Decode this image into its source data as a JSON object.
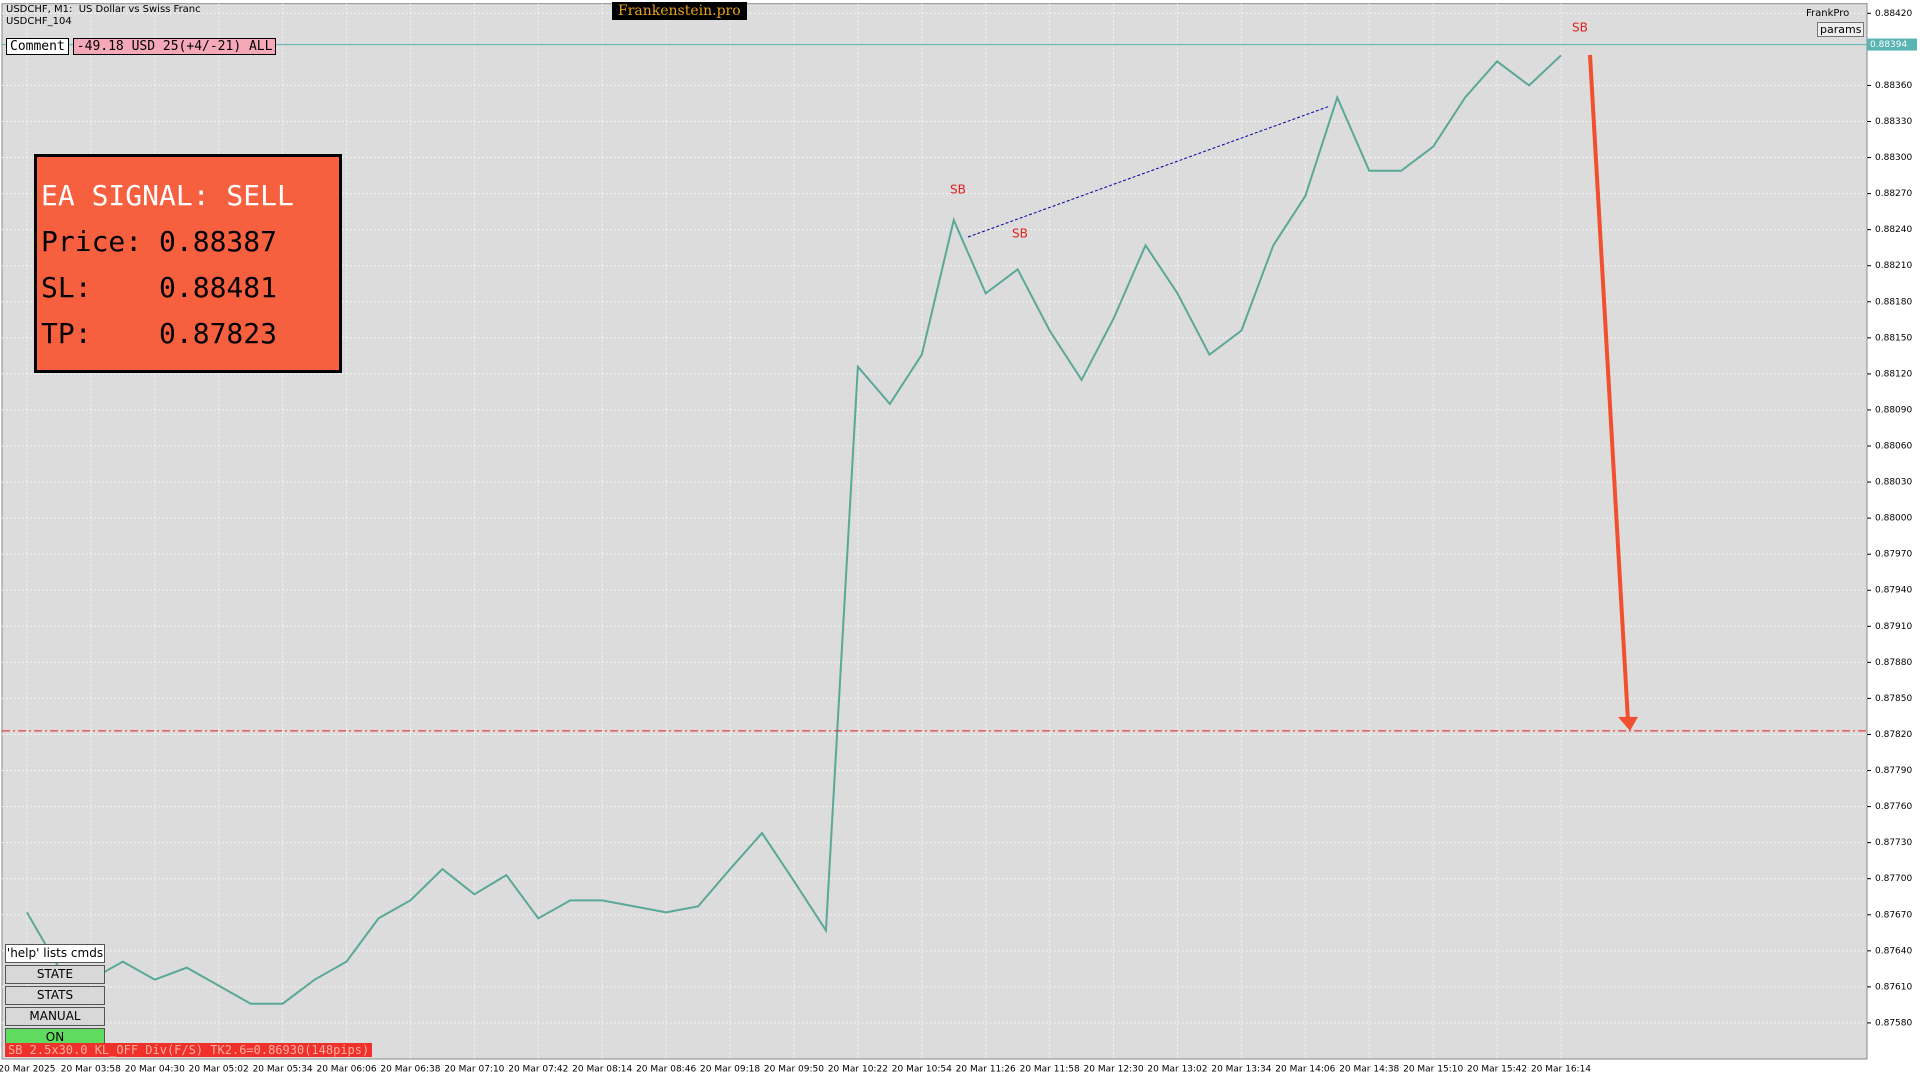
{
  "header": {
    "symbol": "USDCHF, M1:  US Dollar vs Swiss Franc",
    "sub": "USDCHF_104",
    "brand": "Frankenstein.pro",
    "account": "FrankPro",
    "params": "params"
  },
  "comment": {
    "label": "Comment",
    "value": "-49.18 USD 25(+4/-21) ALL"
  },
  "signal": {
    "lines": [
      "EA SIGNAL: SELL",
      "Price: 0.88387",
      "SL:    0.88481",
      "TP:    0.87823"
    ]
  },
  "buttons": [
    "'help' lists cmds",
    "STATE",
    "STATS",
    "MANUAL",
    "ON"
  ],
  "status": "SB 2.5x30.0 KL_OFF Div(F/S) TK2.6=0.86930(148pips)",
  "chart_data": {
    "type": "line",
    "color": "#5aa898",
    "categories": [
      "20 Mar 2025",
      null,
      "20 Mar 03:58",
      null,
      "20 Mar 04:30",
      null,
      "20 Mar 05:02",
      null,
      "20 Mar 05:34",
      null,
      "20 Mar 06:06",
      null,
      "20 Mar 06:38",
      null,
      "20 Mar 07:10",
      null,
      "20 Mar 07:42",
      null,
      "20 Mar 08:14",
      null,
      "20 Mar 08:46",
      null,
      "20 Mar 09:18",
      null,
      "20 Mar 09:50",
      null,
      "20 Mar 10:22",
      null,
      "20 Mar 10:54",
      null,
      "20 Mar 11:26",
      null,
      "20 Mar 11:58",
      null,
      "20 Mar 12:30",
      null,
      "20 Mar 13:02",
      null,
      "20 Mar 13:34",
      null,
      "20 Mar 14:06",
      null,
      "20 Mar 14:38",
      null,
      "20 Mar 15:10",
      null,
      "20 Mar 15:42",
      null,
      "20 Mar 16:14"
    ],
    "values": [
      0.87672,
      0.87626,
      0.87616,
      0.87631,
      0.87616,
      0.87626,
      0.87611,
      0.87596,
      0.87596,
      0.87616,
      0.87631,
      0.87667,
      0.87682,
      0.87708,
      0.87687,
      0.87703,
      0.87667,
      0.87682,
      0.87682,
      0.87677,
      0.87672,
      0.87677,
      0.87708,
      0.87738,
      0.87698,
      0.87657,
      0.88126,
      0.88095,
      0.88136,
      0.88248,
      0.88187,
      0.88207,
      0.88156,
      0.88115,
      0.88166,
      0.88227,
      0.88187,
      0.88136,
      0.88156,
      0.88227,
      0.88268,
      0.8835,
      0.88289,
      0.88289,
      0.88309,
      0.8835,
      0.8838,
      0.8836,
      0.88385
    ],
    "ylim": [
      0.8755,
      0.88428
    ],
    "yticks": [
      {
        "value": 0.8842,
        "label": "0.88420"
      },
      {
        "value": 0.8836,
        "label": "0.88360"
      },
      {
        "value": 0.8833,
        "label": "0.88330"
      },
      {
        "value": 0.883,
        "label": "0.88300"
      },
      {
        "value": 0.8827,
        "label": "0.88270"
      },
      {
        "value": 0.8824,
        "label": "0.88240"
      },
      {
        "value": 0.8821,
        "label": "0.88210"
      },
      {
        "value": 0.8818,
        "label": "0.88180"
      },
      {
        "value": 0.8815,
        "label": "0.88150"
      },
      {
        "value": 0.8812,
        "label": "0.88120"
      },
      {
        "value": 0.8809,
        "label": "0.88090"
      },
      {
        "value": 0.8806,
        "label": "0.88060"
      },
      {
        "value": 0.8803,
        "label": "0.88030"
      },
      {
        "value": 0.88,
        "label": "0.88000"
      },
      {
        "value": 0.8797,
        "label": "0.87970"
      },
      {
        "value": 0.8794,
        "label": "0.87940"
      },
      {
        "value": 0.8791,
        "label": "0.87910"
      },
      {
        "value": 0.8788,
        "label": "0.87880"
      },
      {
        "value": 0.8785,
        "label": "0.87850"
      },
      {
        "value": 0.8782,
        "label": "0.87820"
      },
      {
        "value": 0.8779,
        "label": "0.87790"
      },
      {
        "value": 0.8776,
        "label": "0.87760"
      },
      {
        "value": 0.8773,
        "label": "0.87730"
      },
      {
        "value": 0.877,
        "label": "0.87700"
      },
      {
        "value": 0.8767,
        "label": "0.87670"
      },
      {
        "value": 0.8764,
        "label": "0.87640"
      },
      {
        "value": 0.8761,
        "label": "0.87610"
      },
      {
        "value": 0.8758,
        "label": "0.87580"
      }
    ],
    "grid": true,
    "price_line": 0.88394,
    "tp_line": 0.87823,
    "annotations": [
      "SB",
      "SB",
      "SB"
    ]
  }
}
